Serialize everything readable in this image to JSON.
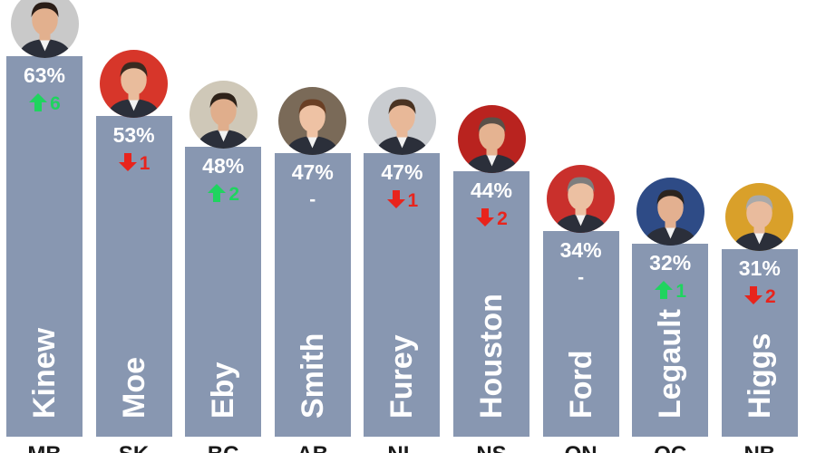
{
  "colors": {
    "bar": "#8897b1",
    "up": "#1fd45f",
    "down": "#e8241c",
    "neutral": "#ffffff"
  },
  "chart_data": {
    "type": "bar",
    "ylim": [
      0,
      70
    ],
    "categories": [
      "MB",
      "SK",
      "BC",
      "AB",
      "NL",
      "NS",
      "ON",
      "QC",
      "NB"
    ],
    "names": [
      "Kinew",
      "Moe",
      "Eby",
      "Smith",
      "Furey",
      "Houston",
      "Ford",
      "Legault",
      "Higgs"
    ],
    "values": [
      63,
      53,
      48,
      47,
      47,
      44,
      34,
      32,
      31
    ],
    "labels": [
      "63%",
      "53%",
      "48%",
      "47%",
      "47%",
      "44%",
      "34%",
      "32%",
      "31%"
    ],
    "changes": [
      {
        "direction": "up",
        "text": "6"
      },
      {
        "direction": "down",
        "text": "1"
      },
      {
        "direction": "up",
        "text": "2"
      },
      {
        "direction": "none",
        "text": "-"
      },
      {
        "direction": "down",
        "text": "1"
      },
      {
        "direction": "down",
        "text": "2"
      },
      {
        "direction": "none",
        "text": "-"
      },
      {
        "direction": "up",
        "text": "1"
      },
      {
        "direction": "down",
        "text": "2"
      }
    ]
  }
}
